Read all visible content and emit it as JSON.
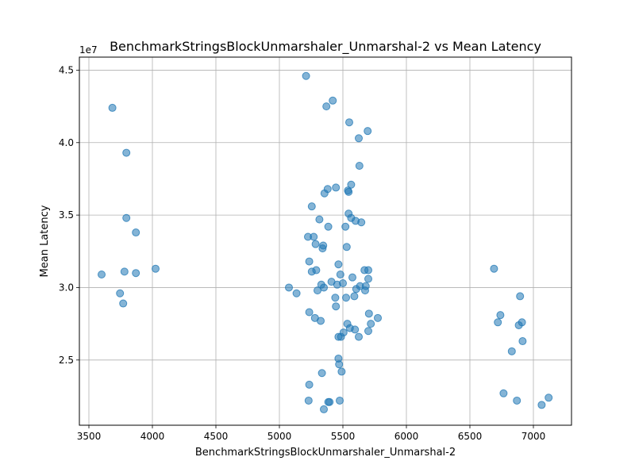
{
  "chart_data": {
    "type": "scatter",
    "title": "BenchmarkStringsBlockUnmarshaler_Unmarshal-2 vs Mean Latency",
    "xlabel": "BenchmarkStringsBlockUnmarshaler_Unmarshal-2",
    "ylabel": "Mean Latency",
    "y_offset_label": "1e7",
    "xlim": [
      3425,
      7300
    ],
    "ylim": [
      20500000,
      45900000
    ],
    "x_ticks": [
      3500,
      4000,
      4500,
      5000,
      5500,
      6000,
      6500,
      7000
    ],
    "x_tick_labels": [
      "3500",
      "4000",
      "4500",
      "5000",
      "5500",
      "6000",
      "6500",
      "7000"
    ],
    "y_ticks": [
      25000000,
      30000000,
      35000000,
      40000000,
      45000000
    ],
    "y_tick_labels": [
      "2.5",
      "3.0",
      "3.5",
      "4.0",
      "4.5"
    ],
    "grid": true,
    "marker_color": "#1f77b4",
    "marker_alpha": 0.55,
    "points": [
      {
        "x": 3600,
        "y": 30900000
      },
      {
        "x": 3685,
        "y": 42400000
      },
      {
        "x": 3745,
        "y": 29600000
      },
      {
        "x": 3770,
        "y": 28900000
      },
      {
        "x": 3780,
        "y": 31100000
      },
      {
        "x": 3795,
        "y": 34800000
      },
      {
        "x": 3795,
        "y": 39300000
      },
      {
        "x": 3870,
        "y": 33800000
      },
      {
        "x": 3870,
        "y": 31000000
      },
      {
        "x": 4025,
        "y": 31300000
      },
      {
        "x": 5075,
        "y": 30000000
      },
      {
        "x": 5135,
        "y": 29600000
      },
      {
        "x": 5210,
        "y": 44600000
      },
      {
        "x": 5225,
        "y": 33500000
      },
      {
        "x": 5235,
        "y": 31800000
      },
      {
        "x": 5235,
        "y": 28300000
      },
      {
        "x": 5235,
        "y": 23300000
      },
      {
        "x": 5230,
        "y": 22200000
      },
      {
        "x": 5255,
        "y": 35600000
      },
      {
        "x": 5255,
        "y": 31100000
      },
      {
        "x": 5270,
        "y": 33500000
      },
      {
        "x": 5280,
        "y": 27900000
      },
      {
        "x": 5285,
        "y": 33000000
      },
      {
        "x": 5290,
        "y": 31200000
      },
      {
        "x": 5300,
        "y": 29800000
      },
      {
        "x": 5315,
        "y": 34700000
      },
      {
        "x": 5330,
        "y": 30200000
      },
      {
        "x": 5325,
        "y": 27700000
      },
      {
        "x": 5335,
        "y": 24100000
      },
      {
        "x": 5340,
        "y": 32700000
      },
      {
        "x": 5345,
        "y": 32900000
      },
      {
        "x": 5355,
        "y": 36500000
      },
      {
        "x": 5350,
        "y": 30000000
      },
      {
        "x": 5350,
        "y": 21600000
      },
      {
        "x": 5370,
        "y": 42500000
      },
      {
        "x": 5380,
        "y": 36800000
      },
      {
        "x": 5385,
        "y": 34200000
      },
      {
        "x": 5385,
        "y": 22100000
      },
      {
        "x": 5395,
        "y": 22100000
      },
      {
        "x": 5410,
        "y": 30400000
      },
      {
        "x": 5420,
        "y": 42900000
      },
      {
        "x": 5440,
        "y": 29300000
      },
      {
        "x": 5445,
        "y": 36900000
      },
      {
        "x": 5445,
        "y": 28700000
      },
      {
        "x": 5455,
        "y": 30200000
      },
      {
        "x": 5465,
        "y": 31600000
      },
      {
        "x": 5465,
        "y": 26600000
      },
      {
        "x": 5465,
        "y": 25100000
      },
      {
        "x": 5470,
        "y": 24700000
      },
      {
        "x": 5475,
        "y": 22200000
      },
      {
        "x": 5480,
        "y": 30900000
      },
      {
        "x": 5485,
        "y": 26600000
      },
      {
        "x": 5490,
        "y": 24200000
      },
      {
        "x": 5500,
        "y": 30300000
      },
      {
        "x": 5505,
        "y": 26900000
      },
      {
        "x": 5520,
        "y": 34200000
      },
      {
        "x": 5525,
        "y": 29300000
      },
      {
        "x": 5530,
        "y": 32800000
      },
      {
        "x": 5535,
        "y": 27500000
      },
      {
        "x": 5540,
        "y": 36700000
      },
      {
        "x": 5545,
        "y": 35100000
      },
      {
        "x": 5545,
        "y": 36600000
      },
      {
        "x": 5550,
        "y": 41400000
      },
      {
        "x": 5555,
        "y": 27200000
      },
      {
        "x": 5565,
        "y": 37100000
      },
      {
        "x": 5565,
        "y": 34800000
      },
      {
        "x": 5575,
        "y": 30700000
      },
      {
        "x": 5590,
        "y": 29400000
      },
      {
        "x": 5595,
        "y": 27100000
      },
      {
        "x": 5600,
        "y": 34600000
      },
      {
        "x": 5605,
        "y": 29900000
      },
      {
        "x": 5625,
        "y": 40300000
      },
      {
        "x": 5630,
        "y": 38400000
      },
      {
        "x": 5625,
        "y": 26600000
      },
      {
        "x": 5635,
        "y": 30100000
      },
      {
        "x": 5645,
        "y": 34500000
      },
      {
        "x": 5670,
        "y": 31200000
      },
      {
        "x": 5675,
        "y": 29800000
      },
      {
        "x": 5680,
        "y": 30100000
      },
      {
        "x": 5695,
        "y": 40800000
      },
      {
        "x": 5700,
        "y": 31200000
      },
      {
        "x": 5700,
        "y": 30600000
      },
      {
        "x": 5705,
        "y": 28200000
      },
      {
        "x": 5700,
        "y": 27000000
      },
      {
        "x": 5720,
        "y": 27500000
      },
      {
        "x": 5775,
        "y": 27900000
      },
      {
        "x": 6690,
        "y": 31300000
      },
      {
        "x": 6720,
        "y": 27600000
      },
      {
        "x": 6740,
        "y": 28100000
      },
      {
        "x": 6765,
        "y": 22700000
      },
      {
        "x": 6830,
        "y": 25600000
      },
      {
        "x": 6870,
        "y": 22200000
      },
      {
        "x": 6885,
        "y": 27400000
      },
      {
        "x": 6895,
        "y": 29400000
      },
      {
        "x": 6910,
        "y": 27600000
      },
      {
        "x": 6915,
        "y": 26300000
      },
      {
        "x": 7065,
        "y": 21900000
      },
      {
        "x": 7120,
        "y": 22400000
      }
    ]
  }
}
